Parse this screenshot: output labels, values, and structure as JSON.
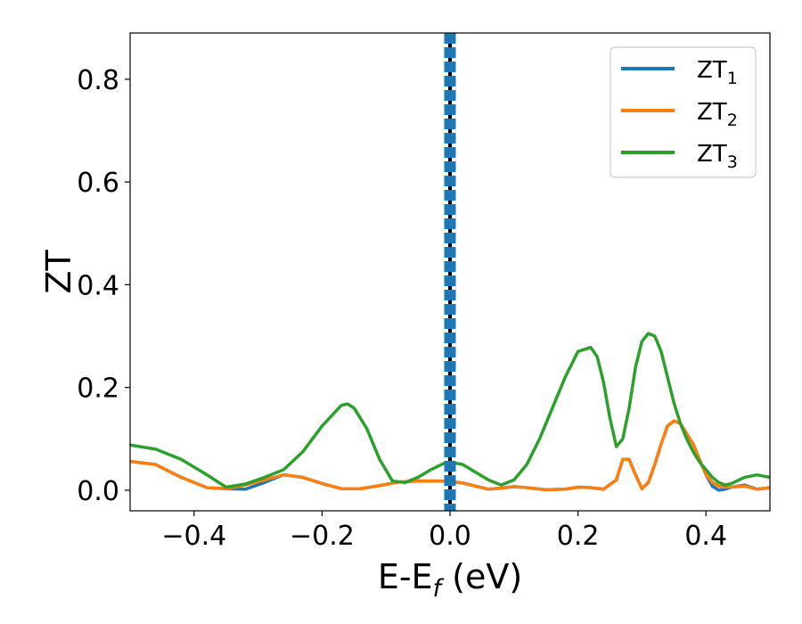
{
  "chart_data": {
    "type": "line",
    "title": "",
    "xlabel": {
      "base": "E-E",
      "sub": "f",
      "rest": " (eV)"
    },
    "ylabel": "ZT",
    "xlim": [
      -0.5,
      0.5
    ],
    "ylim": [
      -0.04,
      0.89
    ],
    "x_ticks": [
      -0.4,
      -0.2,
      0.0,
      0.2,
      0.4
    ],
    "x_tick_labels": [
      "−0.4",
      "−0.2",
      "0.0",
      "0.2",
      "0.4"
    ],
    "y_ticks": [
      0.0,
      0.2,
      0.4,
      0.6,
      0.8
    ],
    "y_tick_labels": [
      "0.0",
      "0.2",
      "0.4",
      "0.6",
      "0.8"
    ],
    "grid": false,
    "legend_position": "top-right",
    "vline": {
      "x": 0.0
    },
    "series": [
      {
        "name": "ZT",
        "sub": "1",
        "color": "#1f77b4",
        "x": [
          -0.5,
          -0.46,
          -0.42,
          -0.38,
          -0.35,
          -0.32,
          -0.29,
          -0.26,
          -0.23,
          -0.2,
          -0.17,
          -0.14,
          -0.11,
          -0.08,
          -0.05,
          -0.02,
          0.0,
          0.02,
          0.04,
          0.06,
          0.08,
          0.1,
          0.12,
          0.15,
          0.18,
          0.2,
          0.22,
          0.24,
          0.26,
          0.27,
          0.28,
          0.29,
          0.3,
          0.31,
          0.32,
          0.33,
          0.34,
          0.35,
          0.36,
          0.37,
          0.38,
          0.39,
          0.4,
          0.41,
          0.42,
          0.43,
          0.44,
          0.46,
          0.48,
          0.5
        ],
        "y": [
          0.056,
          0.05,
          0.025,
          0.005,
          0.003,
          0.002,
          0.015,
          0.03,
          0.025,
          0.013,
          0.003,
          0.003,
          0.009,
          0.016,
          0.018,
          0.018,
          0.017,
          0.014,
          0.008,
          0.002,
          0.004,
          0.007,
          0.005,
          0.001,
          0.002,
          0.006,
          0.005,
          0.002,
          0.02,
          0.06,
          0.06,
          0.03,
          0.003,
          0.015,
          0.05,
          0.09,
          0.125,
          0.135,
          0.13,
          0.11,
          0.09,
          0.06,
          0.03,
          0.008,
          0.0,
          0.002,
          0.006,
          0.01,
          0.002,
          0.005
        ]
      },
      {
        "name": "ZT",
        "sub": "2",
        "color": "#ff7f0e",
        "x": [
          -0.5,
          -0.46,
          -0.42,
          -0.38,
          -0.35,
          -0.32,
          -0.29,
          -0.26,
          -0.23,
          -0.2,
          -0.17,
          -0.14,
          -0.11,
          -0.08,
          -0.05,
          -0.02,
          0.0,
          0.02,
          0.04,
          0.06,
          0.08,
          0.1,
          0.12,
          0.15,
          0.18,
          0.2,
          0.22,
          0.24,
          0.26,
          0.27,
          0.28,
          0.29,
          0.3,
          0.31,
          0.32,
          0.33,
          0.34,
          0.35,
          0.36,
          0.37,
          0.38,
          0.39,
          0.4,
          0.41,
          0.42,
          0.43,
          0.44,
          0.46,
          0.48,
          0.5
        ],
        "y": [
          0.056,
          0.05,
          0.025,
          0.005,
          0.003,
          0.01,
          0.02,
          0.03,
          0.025,
          0.013,
          0.003,
          0.003,
          0.009,
          0.016,
          0.018,
          0.018,
          0.017,
          0.014,
          0.008,
          0.002,
          0.004,
          0.007,
          0.005,
          0.001,
          0.002,
          0.006,
          0.005,
          0.002,
          0.02,
          0.06,
          0.06,
          0.03,
          0.003,
          0.015,
          0.05,
          0.09,
          0.125,
          0.135,
          0.13,
          0.11,
          0.09,
          0.06,
          0.03,
          0.015,
          0.008,
          0.006,
          0.006,
          0.008,
          0.002,
          0.005
        ]
      },
      {
        "name": "ZT",
        "sub": "3",
        "color": "#2ca02c",
        "x": [
          -0.5,
          -0.46,
          -0.42,
          -0.38,
          -0.35,
          -0.32,
          -0.29,
          -0.26,
          -0.23,
          -0.2,
          -0.17,
          -0.16,
          -0.15,
          -0.13,
          -0.11,
          -0.09,
          -0.07,
          -0.05,
          -0.03,
          -0.01,
          0.0,
          0.02,
          0.04,
          0.06,
          0.08,
          0.1,
          0.12,
          0.14,
          0.16,
          0.18,
          0.2,
          0.22,
          0.23,
          0.24,
          0.25,
          0.26,
          0.27,
          0.28,
          0.29,
          0.3,
          0.31,
          0.32,
          0.33,
          0.34,
          0.35,
          0.36,
          0.37,
          0.38,
          0.39,
          0.4,
          0.41,
          0.42,
          0.43,
          0.44,
          0.46,
          0.48,
          0.5
        ],
        "y": [
          0.088,
          0.08,
          0.06,
          0.03,
          0.006,
          0.012,
          0.025,
          0.04,
          0.075,
          0.125,
          0.165,
          0.168,
          0.16,
          0.12,
          0.06,
          0.018,
          0.015,
          0.025,
          0.04,
          0.052,
          0.055,
          0.05,
          0.035,
          0.02,
          0.01,
          0.02,
          0.05,
          0.1,
          0.16,
          0.22,
          0.27,
          0.278,
          0.26,
          0.21,
          0.14,
          0.085,
          0.1,
          0.16,
          0.24,
          0.29,
          0.305,
          0.3,
          0.27,
          0.22,
          0.17,
          0.13,
          0.1,
          0.075,
          0.055,
          0.04,
          0.025,
          0.015,
          0.01,
          0.013,
          0.025,
          0.03,
          0.025
        ]
      }
    ]
  }
}
